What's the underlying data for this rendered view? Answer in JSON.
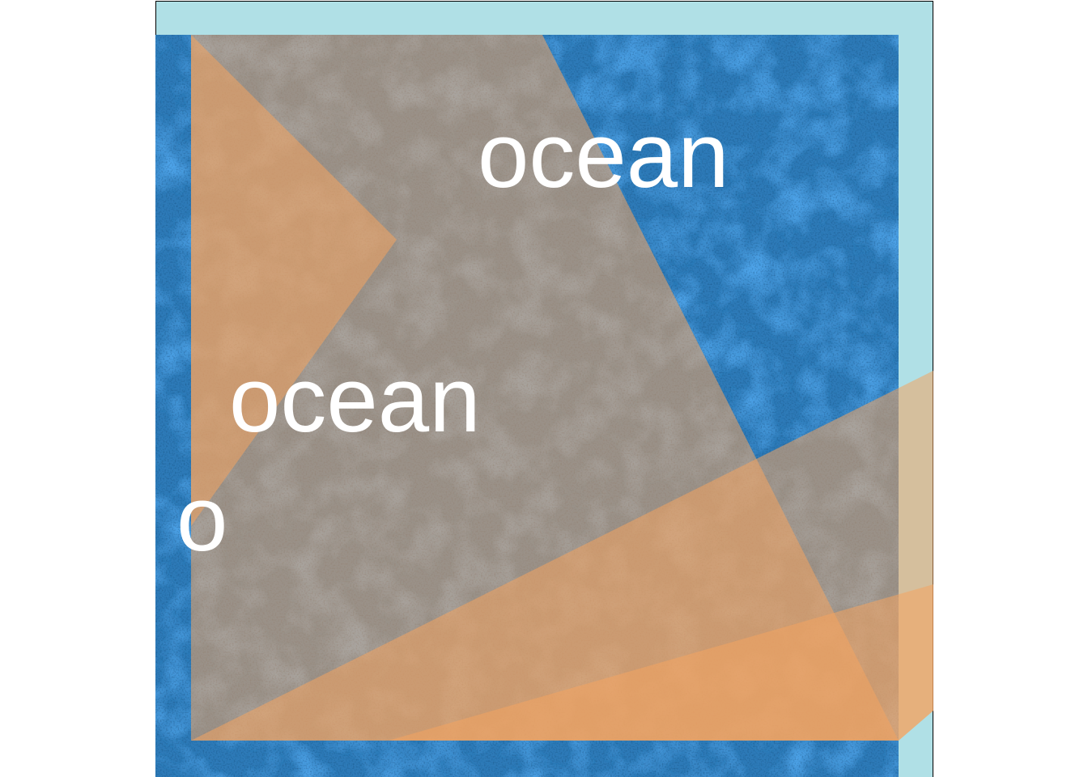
{
  "scene": {
    "words": {
      "top": "ocean",
      "middle": "ocean",
      "lower": "o"
    },
    "colors": {
      "frame": "#b0e0e6",
      "frame_border": "#000000",
      "ocean_base": "#2e7ab8",
      "ocean_dark": "#1b4f7e",
      "ocean_light": "#4ea3e8",
      "orange_overlay": "#f4a460",
      "text": "#ffffff"
    }
  }
}
